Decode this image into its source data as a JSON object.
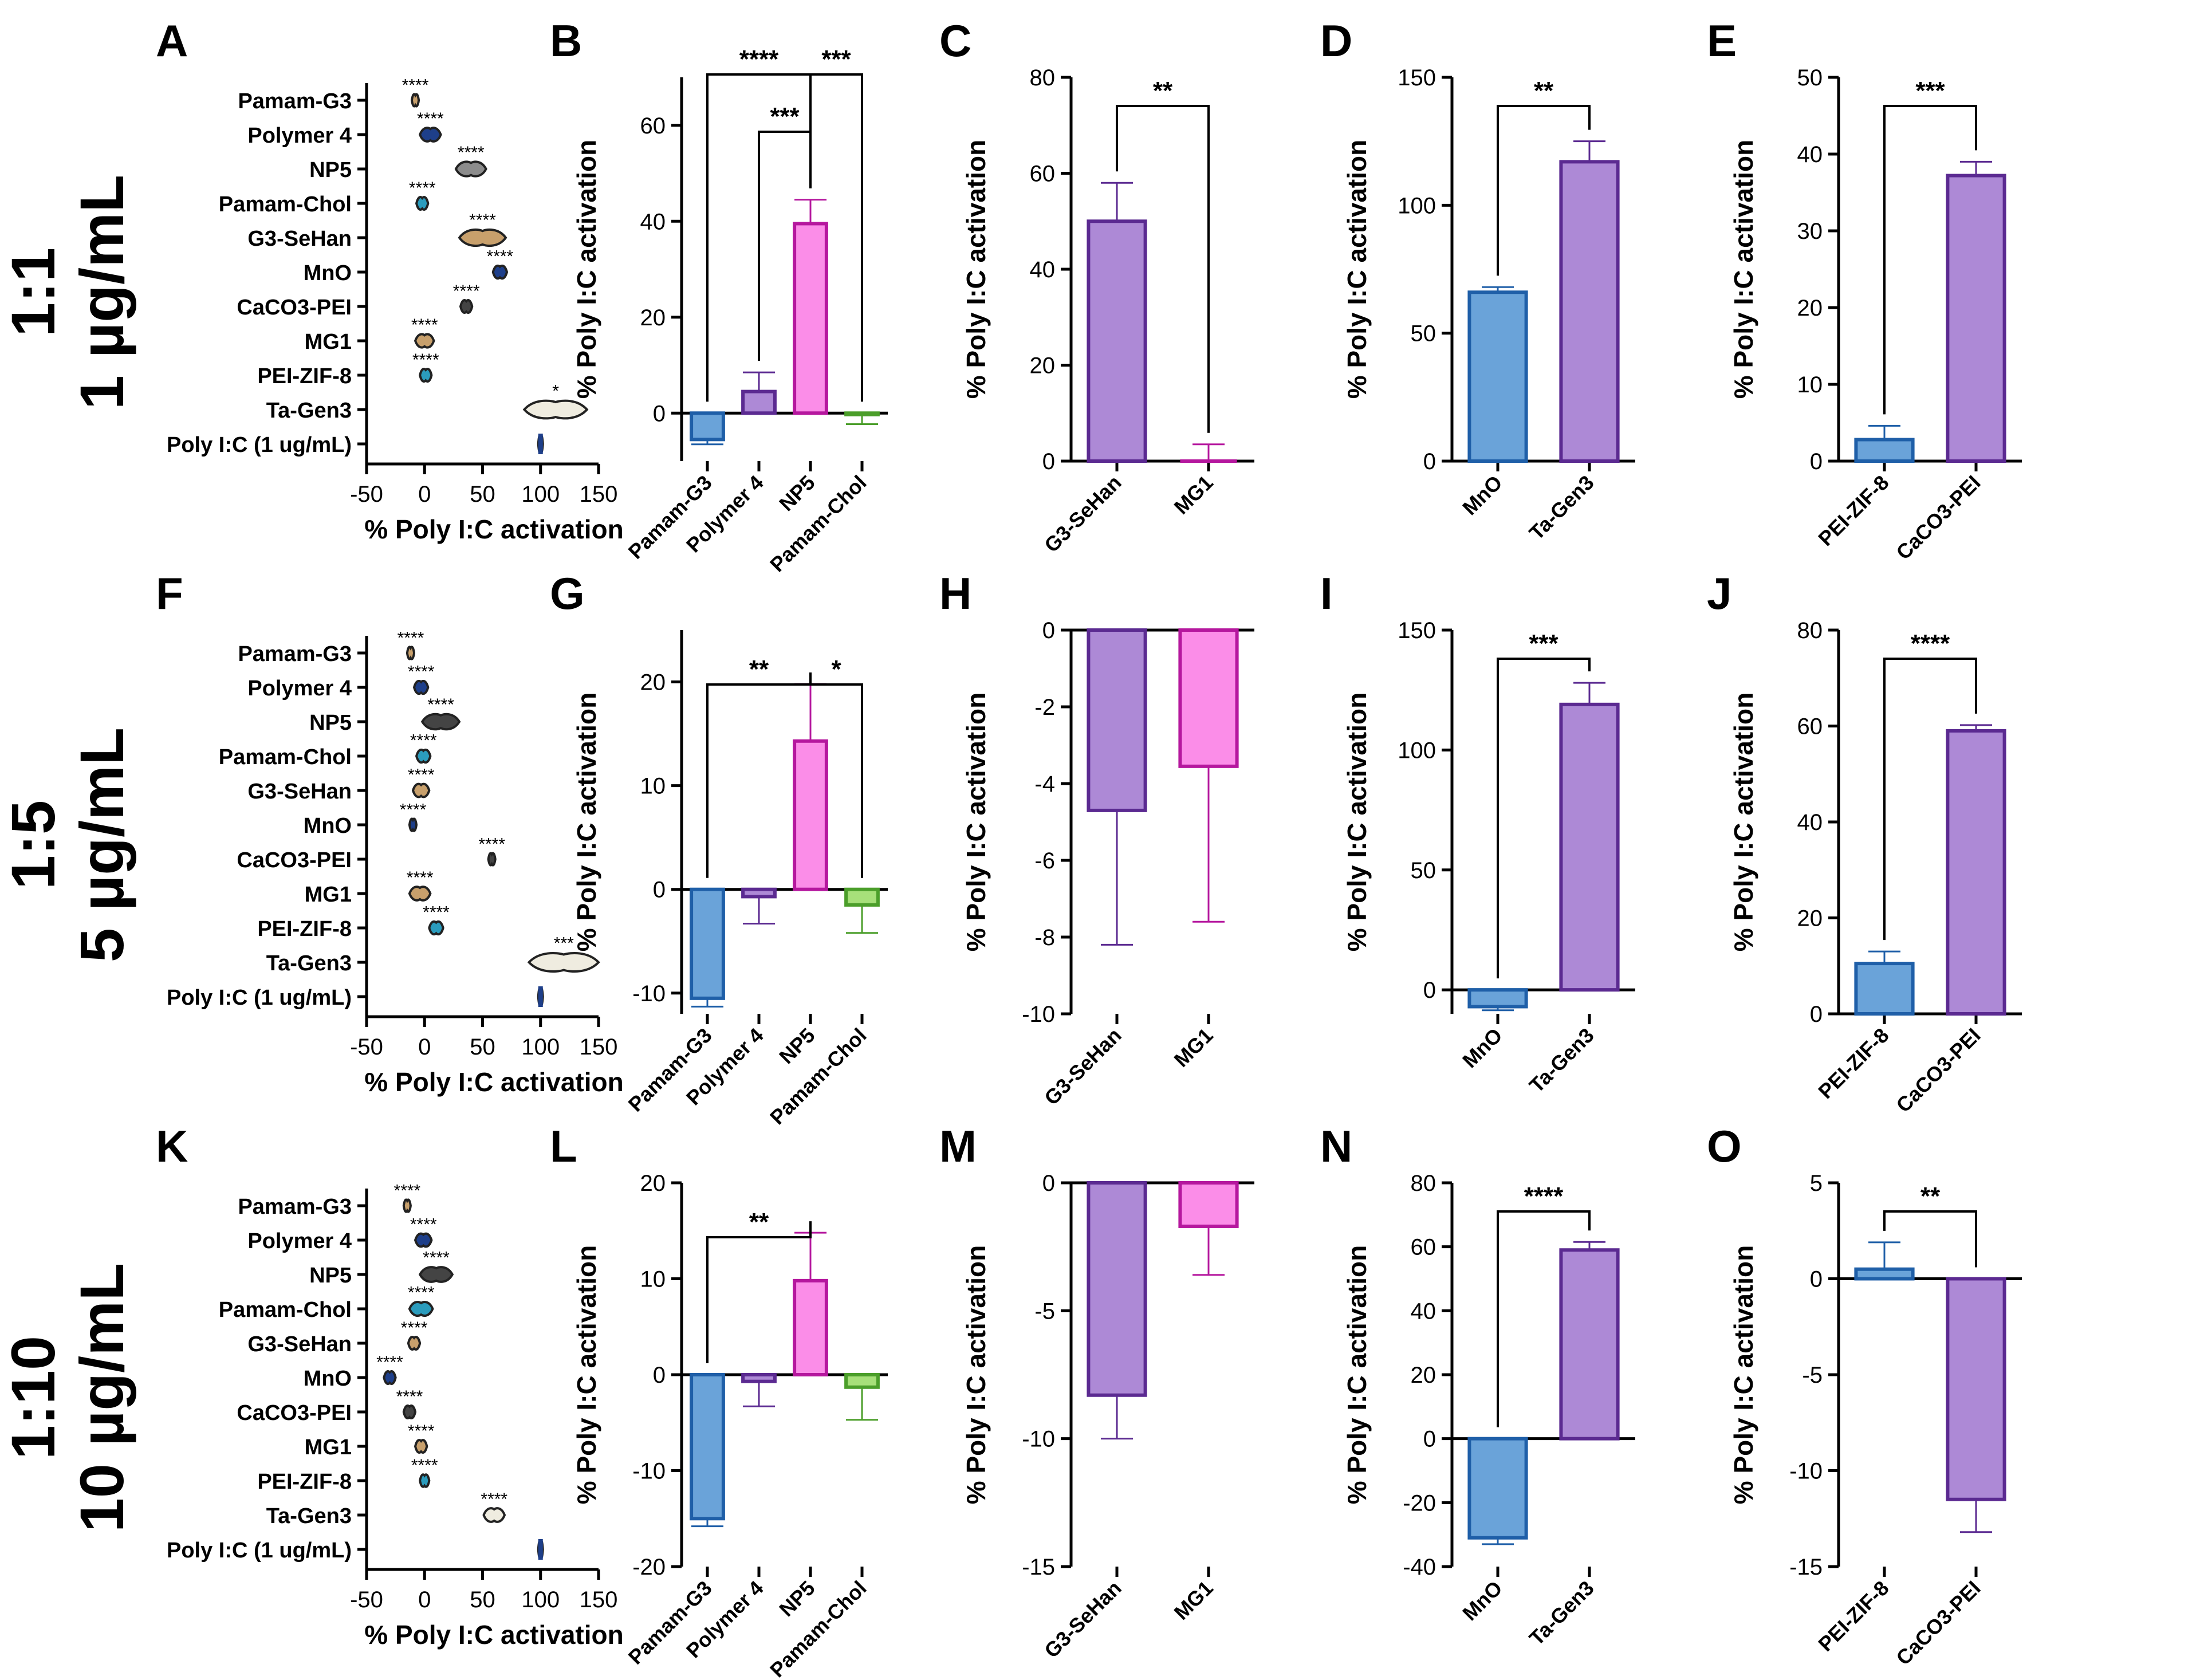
{
  "figure": {
    "row_labels": [
      {
        "ratio": "1:1",
        "conc": "1 µg/mL"
      },
      {
        "ratio": "1:5",
        "conc": "5 µg/mL"
      },
      {
        "ratio": "1:10",
        "conc": "10 µg/mL"
      }
    ],
    "axis_label": "% Poly I:C activation"
  },
  "colors": {
    "blue_fill": "#6aa3d9",
    "blue_edge": "#1f5fa8",
    "purple_fill": "#ad89d6",
    "purple_edge": "#5b2a91",
    "pink_fill": "#fb8de8",
    "pink_edge": "#b5179e",
    "green_fill": "#a7e07a",
    "green_edge": "#4b9e2a"
  },
  "chart_data": [
    {
      "id": "A",
      "type": "violin",
      "xlabel": "% Poly I:C activation",
      "xlim": [
        -50,
        150
      ],
      "xticks": [
        -50,
        0,
        50,
        100,
        150
      ],
      "categories": [
        "Pamam-G3",
        "Polymer 4",
        "NP5",
        "Pamam-Chol",
        "G3-SeHan",
        "MnO",
        "CaCO3-PEI",
        "MG1",
        "PEI-ZIF-8",
        "Ta-Gen3",
        "Poly I:C (1 ug/mL)"
      ],
      "centers": [
        -8,
        5,
        40,
        -2,
        50,
        65,
        36,
        0,
        1,
        113,
        100
      ],
      "spread": [
        3,
        9,
        13,
        5,
        20,
        6,
        5,
        8,
        5,
        27,
        1
      ],
      "sig": [
        "****",
        "****",
        "****",
        "****",
        "****",
        "****",
        "****",
        "****",
        "****",
        "*",
        ""
      ],
      "fill": [
        "#c8a06c",
        "#1e3f8a",
        "#8c8c8c",
        "#2b9cbd",
        "#c8a06c",
        "#1e3f8a",
        "#444444",
        "#c8a06c",
        "#2b9cbd",
        "#efece0",
        "#1e3f8a"
      ]
    },
    {
      "id": "B",
      "type": "bar",
      "ylabel": "% Poly I:C activation",
      "ylim": [
        -10,
        70
      ],
      "yticks": [
        0,
        20,
        40,
        60
      ],
      "tick_labels": [
        "0",
        "20",
        "40",
        "60"
      ],
      "categories": [
        "Pamam-G3",
        "Polymer 4",
        "NP5",
        "Pamam-Chol"
      ],
      "values": [
        -5.5,
        4.5,
        39.5,
        -0.3
      ],
      "errors": [
        1,
        4,
        5,
        2
      ],
      "colors": [
        "blue",
        "purple",
        "pink",
        "green"
      ],
      "brackets": [
        {
          "from": 0,
          "to": 2,
          "label": "****",
          "level": 2
        },
        {
          "from": 2,
          "to": 3,
          "label": "***",
          "level": 2
        },
        {
          "from": 1,
          "to": 2,
          "label": "***",
          "level": 1
        }
      ]
    },
    {
      "id": "C",
      "type": "bar",
      "ylabel": "% Poly I:C activation",
      "ylim": [
        0,
        80
      ],
      "yticks": [
        0,
        20,
        40,
        60,
        80
      ],
      "tick_labels": [
        "0",
        "20",
        "40",
        "60",
        "80"
      ],
      "categories": [
        "G3-SeHan",
        "MG1"
      ],
      "values": [
        50,
        0
      ],
      "errors": [
        8,
        3.5
      ],
      "colors": [
        "purple",
        "pink"
      ],
      "brackets": [
        {
          "from": 0,
          "to": 1,
          "label": "**",
          "level": 1
        }
      ]
    },
    {
      "id": "D",
      "type": "bar",
      "ylabel": "% Poly I:C activation",
      "ylim": [
        0,
        150
      ],
      "yticks": [
        0,
        50,
        100,
        150
      ],
      "tick_labels": [
        "0",
        "50",
        "100",
        "150"
      ],
      "categories": [
        "MnO",
        "Ta-Gen3"
      ],
      "values": [
        66,
        117
      ],
      "errors": [
        2,
        8
      ],
      "colors": [
        "blue",
        "purple"
      ],
      "brackets": [
        {
          "from": 0,
          "to": 1,
          "label": "**",
          "level": 1
        }
      ]
    },
    {
      "id": "E",
      "type": "bar",
      "ylabel": "% Poly I:C activation",
      "ylim": [
        0,
        50
      ],
      "yticks": [
        0,
        10,
        20,
        30,
        40,
        50
      ],
      "tick_labels": [
        "0",
        "10",
        "20",
        "30",
        "40",
        "50"
      ],
      "categories": [
        "PEI-ZIF-8",
        "CaCO3-PEI"
      ],
      "values": [
        2.8,
        37.2
      ],
      "errors": [
        1.8,
        1.8
      ],
      "colors": [
        "blue",
        "purple"
      ],
      "brackets": [
        {
          "from": 0,
          "to": 1,
          "label": "***",
          "level": 1
        }
      ]
    },
    {
      "id": "F",
      "type": "violin",
      "xlabel": "% Poly I:C activation",
      "xlim": [
        -50,
        150
      ],
      "xticks": [
        -50,
        0,
        50,
        100,
        150
      ],
      "categories": [
        "Pamam-G3",
        "Polymer 4",
        "NP5",
        "Pamam-Chol",
        "G3-SeHan",
        "MnO",
        "CaCO3-PEI",
        "MG1",
        "PEI-ZIF-8",
        "Ta-Gen3",
        "Poly I:C (1 ug/mL)"
      ],
      "centers": [
        -12,
        -3,
        14,
        -1,
        -3,
        -10,
        58,
        -4,
        10,
        120,
        100
      ],
      "spread": [
        3,
        6,
        16,
        6,
        7,
        3,
        3,
        9,
        6,
        30,
        1
      ],
      "sig": [
        "****",
        "****",
        "****",
        "****",
        "****",
        "****",
        "****",
        "****",
        "****",
        "***",
        ""
      ],
      "fill": [
        "#c8a06c",
        "#1e3f8a",
        "#444444",
        "#2b9cbd",
        "#c8a06c",
        "#1e3f8a",
        "#444444",
        "#c8a06c",
        "#2b9cbd",
        "#efece0",
        "#1e3f8a"
      ]
    },
    {
      "id": "G",
      "type": "bar",
      "ylabel": "% Poly I:C activation",
      "ylim": [
        -12,
        25
      ],
      "yticks": [
        -10,
        0,
        10,
        20
      ],
      "tick_labels": [
        "-10",
        "0",
        "10",
        "20"
      ],
      "categories": [
        "Pamam-G3",
        "Polymer 4",
        "NP5",
        "Pamam-Chol"
      ],
      "values": [
        -10.5,
        -0.7,
        14.3,
        -1.5
      ],
      "errors": [
        0.8,
        2.6,
        5.5,
        2.7
      ],
      "colors": [
        "blue",
        "purple",
        "pink",
        "green"
      ],
      "brackets": [
        {
          "from": 0,
          "to": 2,
          "label": "**",
          "level": 1
        },
        {
          "from": 2,
          "to": 3,
          "label": "*",
          "level": 1
        }
      ]
    },
    {
      "id": "H",
      "type": "bar",
      "ylabel": "% Poly I:C activation",
      "ylim": [
        -10,
        0
      ],
      "yticks": [
        -10,
        -8,
        -6,
        -4,
        -2,
        0
      ],
      "tick_labels": [
        "-10",
        "-8",
        "-6",
        "-4",
        "-2",
        "0"
      ],
      "categories": [
        "G3-SeHan",
        "MG1"
      ],
      "values": [
        -4.7,
        -3.55
      ],
      "errors": [
        3.5,
        4.05
      ],
      "colors": [
        "purple",
        "pink"
      ],
      "brackets": []
    },
    {
      "id": "I",
      "type": "bar",
      "ylabel": "% Poly I:C activation",
      "ylim": [
        -10,
        150
      ],
      "yticks": [
        0,
        50,
        100,
        150
      ],
      "tick_labels": [
        "0",
        "50",
        "100",
        "150"
      ],
      "categories": [
        "MnO",
        "Ta-Gen3"
      ],
      "values": [
        -7,
        119
      ],
      "errors": [
        1.5,
        9
      ],
      "colors": [
        "blue",
        "purple"
      ],
      "brackets": [
        {
          "from": 0,
          "to": 1,
          "label": "***",
          "level": 1
        }
      ]
    },
    {
      "id": "J",
      "type": "bar",
      "ylabel": "% Poly I:C activation",
      "ylim": [
        0,
        80
      ],
      "yticks": [
        0,
        20,
        40,
        60,
        80
      ],
      "tick_labels": [
        "0",
        "20",
        "40",
        "60",
        "80"
      ],
      "categories": [
        "PEI-ZIF-8",
        "CaCO3-PEI"
      ],
      "values": [
        10.5,
        59
      ],
      "errors": [
        2.5,
        1.2
      ],
      "colors": [
        "blue",
        "purple"
      ],
      "brackets": [
        {
          "from": 0,
          "to": 1,
          "label": "****",
          "level": 1
        }
      ]
    },
    {
      "id": "K",
      "type": "violin",
      "xlabel": "% Poly I:C activation",
      "xlim": [
        -50,
        150
      ],
      "xticks": [
        -50,
        0,
        50,
        100,
        150
      ],
      "categories": [
        "Pamam-G3",
        "Polymer 4",
        "NP5",
        "Pamam-Chol",
        "G3-SeHan",
        "MnO",
        "CaCO3-PEI",
        "MG1",
        "PEI-ZIF-8",
        "Ta-Gen3",
        "Poly I:C (1 ug/mL)"
      ],
      "centers": [
        -15,
        -1,
        10,
        -3,
        -9,
        -30,
        -13,
        -3,
        0,
        60,
        100
      ],
      "spread": [
        3,
        7,
        14,
        10,
        5,
        5,
        5,
        5,
        4,
        9,
        1
      ],
      "sig": [
        "****",
        "****",
        "****",
        "****",
        "****",
        "****",
        "****",
        "****",
        "****",
        "****",
        ""
      ],
      "fill": [
        "#c8a06c",
        "#1e3f8a",
        "#444444",
        "#2b9cbd",
        "#c8a06c",
        "#1e3f8a",
        "#444444",
        "#c8a06c",
        "#2b9cbd",
        "#efece0",
        "#1e3f8a"
      ]
    },
    {
      "id": "L",
      "type": "bar",
      "ylabel": "% Poly I:C activation",
      "ylim": [
        -20,
        20
      ],
      "yticks": [
        -20,
        -10,
        0,
        10,
        20
      ],
      "tick_labels": [
        "-20",
        "-10",
        "0",
        "10",
        "20"
      ],
      "categories": [
        "Pamam-G3",
        "Polymer 4",
        "NP5",
        "Pamam-Chol"
      ],
      "values": [
        -15,
        -0.7,
        9.8,
        -1.3
      ],
      "errors": [
        0.8,
        2.6,
        5,
        3.4
      ],
      "colors": [
        "blue",
        "purple",
        "pink",
        "green"
      ],
      "brackets": [
        {
          "from": 0,
          "to": 2,
          "label": "**",
          "level": 1
        }
      ]
    },
    {
      "id": "M",
      "type": "bar",
      "ylabel": "% Poly I:C activation",
      "ylim": [
        -15,
        0
      ],
      "yticks": [
        -15,
        -10,
        -5,
        0
      ],
      "tick_labels": [
        "-15",
        "-10",
        "-5",
        "0"
      ],
      "categories": [
        "G3-SeHan",
        "MG1"
      ],
      "values": [
        -8.3,
        -1.7
      ],
      "errors": [
        1.7,
        1.9
      ],
      "colors": [
        "purple",
        "pink"
      ],
      "brackets": []
    },
    {
      "id": "N",
      "type": "bar",
      "ylabel": "% Poly I:C activation",
      "ylim": [
        -40,
        80
      ],
      "yticks": [
        -40,
        -20,
        0,
        20,
        40,
        60,
        80
      ],
      "tick_labels": [
        "-40",
        "-20",
        "0",
        "20",
        "40",
        "60",
        "80"
      ],
      "categories": [
        "MnO",
        "Ta-Gen3"
      ],
      "values": [
        -31,
        59
      ],
      "errors": [
        2,
        2.5
      ],
      "colors": [
        "blue",
        "purple"
      ],
      "brackets": [
        {
          "from": 0,
          "to": 1,
          "label": "****",
          "level": 1
        }
      ]
    },
    {
      "id": "O",
      "type": "bar",
      "ylabel": "% Poly I:C activation",
      "ylim": [
        -15,
        5
      ],
      "yticks": [
        -15,
        -10,
        -5,
        0,
        5
      ],
      "tick_labels": [
        "-15",
        "-10",
        "-5",
        "0",
        "5"
      ],
      "categories": [
        "PEI-ZIF-8",
        "CaCO3-PEI"
      ],
      "values": [
        0.5,
        -11.5
      ],
      "errors": [
        1.4,
        1.7
      ],
      "colors": [
        "blue",
        "purple"
      ],
      "brackets": [
        {
          "from": 0,
          "to": 1,
          "label": "**",
          "level": 1
        }
      ]
    }
  ]
}
